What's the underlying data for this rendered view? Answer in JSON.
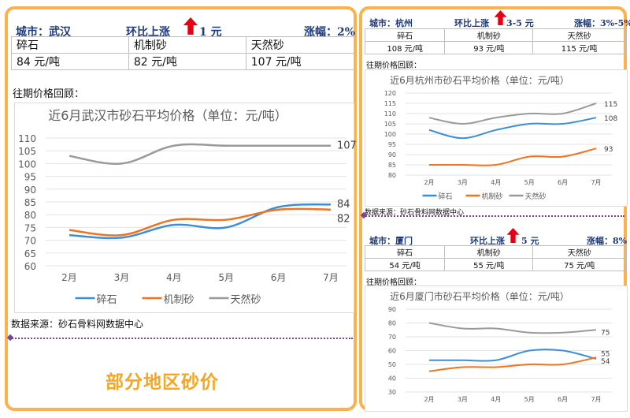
{
  "footer_title": "部分地区砂价",
  "colors": {
    "border": "#fbb24c",
    "header_text": "#1f3a7a",
    "up_arrow": "#e60012",
    "series": [
      "#3b8fd9",
      "#f07320",
      "#9a9a9a"
    ],
    "footer_title": "#f5a623"
  },
  "cities": [
    {
      "id": "wuhan",
      "city": "城市：武汉",
      "change": "环比上涨",
      "change_value": "1 元",
      "range": "涨幅：2%",
      "headers": [
        "碎石",
        "机制砂",
        "天然砂"
      ],
      "prices": [
        "84 元/吨",
        "82 元/吨",
        "107 元/吨"
      ],
      "review_label": "往期价格回顾：",
      "source": "数据来源：砂石骨料网数据中心"
    },
    {
      "id": "hangzhou",
      "city": "城市：杭州",
      "change": "环比上涨",
      "change_value": "3-5 元",
      "range": "涨幅：3%-5%",
      "headers": [
        "碎石",
        "机制砂",
        "天然砂"
      ],
      "prices": [
        "108 元/吨",
        "93 元/吨",
        "115 元/吨"
      ],
      "review_label": "往期价格回顾：",
      "source": "数据来源：砂石骨料网数据中心"
    },
    {
      "id": "xiamen",
      "city": "城市：厦门",
      "change": "环比上涨",
      "change_value": "5 元",
      "range": "涨幅：8%",
      "headers": [
        "碎石",
        "机制砂",
        "天然砂"
      ],
      "prices": [
        "54 元/吨",
        "55 元/吨",
        "75 元/吨"
      ],
      "review_label": "往期价格回顾："
    }
  ],
  "chart_data": [
    {
      "type": "line",
      "title": "近6月武汉市砂石平均价格（单位：元/吨）",
      "categories": [
        "2月",
        "3月",
        "4月",
        "5月",
        "6月",
        "7月"
      ],
      "ylim": [
        60,
        110
      ],
      "yticks": [
        60,
        65,
        70,
        75,
        80,
        85,
        90,
        95,
        100,
        105,
        110
      ],
      "grid": true,
      "legend": "bottom",
      "smooth": true,
      "series": [
        {
          "name": "碎石",
          "values": [
            72,
            71,
            76,
            75,
            83,
            84
          ]
        },
        {
          "name": "机制砂",
          "values": [
            74,
            72,
            78,
            78,
            82,
            82
          ]
        },
        {
          "name": "天然砂",
          "values": [
            103,
            100,
            107,
            107,
            107,
            107
          ]
        }
      ],
      "end_labels": [
        "84",
        "82",
        "107"
      ]
    },
    {
      "type": "line",
      "title": "近6月杭州市砂石平均价格（单位：元/吨）",
      "categories": [
        "2月",
        "3月",
        "4月",
        "5月",
        "6月",
        "7月"
      ],
      "ylim": [
        80,
        120
      ],
      "yticks": [
        80,
        85,
        90,
        95,
        100,
        105,
        110,
        115,
        120
      ],
      "grid": true,
      "legend": "bottom",
      "smooth": true,
      "series": [
        {
          "name": "碎石",
          "values": [
            102,
            98,
            102,
            105,
            105,
            108
          ]
        },
        {
          "name": "机制砂",
          "values": [
            85,
            85,
            85,
            89,
            89,
            93
          ]
        },
        {
          "name": "天然砂",
          "values": [
            108,
            105,
            108,
            110,
            110,
            115
          ]
        }
      ],
      "end_labels": [
        "108",
        "93",
        "115"
      ]
    },
    {
      "type": "line",
      "title": "近6月厦门市砂石平均价格（单位：元/吨）",
      "categories": [
        "2月",
        "3月",
        "4月",
        "5月",
        "6月",
        "7月"
      ],
      "ylim": [
        30,
        90
      ],
      "yticks": [
        30,
        40,
        50,
        60,
        70,
        80,
        90
      ],
      "grid": true,
      "legend": "none",
      "smooth": true,
      "series": [
        {
          "name": "碎石",
          "values": [
            53,
            53,
            53,
            60,
            60,
            54
          ]
        },
        {
          "name": "机制砂",
          "values": [
            45,
            48,
            48,
            50,
            50,
            55
          ]
        },
        {
          "name": "天然砂",
          "values": [
            80,
            76,
            76,
            73,
            73,
            75
          ]
        }
      ],
      "end_labels": [
        "54",
        "55",
        "75"
      ]
    }
  ]
}
